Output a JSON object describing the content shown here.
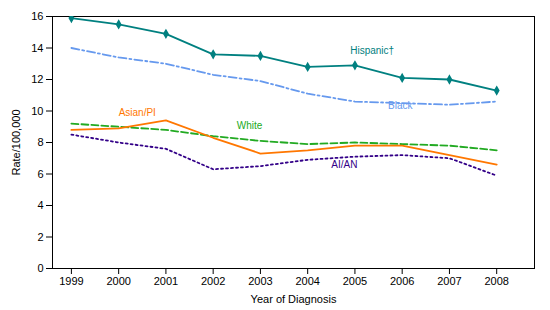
{
  "chart_data": {
    "type": "line",
    "xlabel": "Year of Diagnosis",
    "ylabel": "Rate/100,000",
    "x": [
      1999,
      2000,
      2001,
      2002,
      2003,
      2004,
      2005,
      2006,
      2007,
      2008
    ],
    "series": [
      {
        "name": "Hispanic†",
        "color": "#008080",
        "line_style": "solid",
        "marker": "diamond",
        "values": [
          15.9,
          15.5,
          14.9,
          13.6,
          13.5,
          12.8,
          12.9,
          12.1,
          12.0,
          11.3
        ]
      },
      {
        "name": "Black",
        "color": "#6699EE",
        "line_style": "dashdot",
        "values": [
          14.0,
          13.4,
          13.0,
          12.3,
          11.9,
          11.1,
          10.6,
          10.5,
          10.4,
          10.6
        ]
      },
      {
        "name": "White",
        "color": "#22AA22",
        "line_style": "dashed",
        "values": [
          9.2,
          9.0,
          8.8,
          8.4,
          8.1,
          7.9,
          8.0,
          7.9,
          7.8,
          7.5
        ]
      },
      {
        "name": "Asian/PI",
        "color": "#FF7700",
        "line_style": "solid",
        "values": [
          8.8,
          8.9,
          9.4,
          8.3,
          7.3,
          7.5,
          7.8,
          7.8,
          7.2,
          6.6
        ]
      },
      {
        "name": "AI/AN",
        "color": "#330088",
        "line_style": "dotted",
        "values": [
          8.5,
          8.0,
          7.6,
          6.3,
          6.5,
          6.9,
          7.1,
          7.2,
          7.0,
          5.9
        ]
      }
    ],
    "annotations": [
      {
        "text": "Hispanic†",
        "x": 2004.9,
        "y": 13.6,
        "color": "#008080"
      },
      {
        "text": "Black",
        "x": 2005.7,
        "y": 10.1,
        "color": "#6699EE"
      },
      {
        "text": "White",
        "x": 2002.5,
        "y": 8.85,
        "color": "#22AA22"
      },
      {
        "text": "Asian/PI",
        "x": 2000.0,
        "y": 9.7,
        "color": "#FF7700"
      },
      {
        "text": "AI/AN",
        "x": 2004.5,
        "y": 6.4,
        "color": "#330088"
      }
    ],
    "xlim": [
      1998.6,
      2008.8
    ],
    "xticks": [
      1999,
      2000,
      2001,
      2002,
      2003,
      2004,
      2005,
      2006,
      2007,
      2008
    ],
    "ylim": [
      0,
      16
    ],
    "yticks": [
      0,
      2,
      4,
      6,
      8,
      10,
      12,
      14,
      16
    ],
    "grid": false
  }
}
